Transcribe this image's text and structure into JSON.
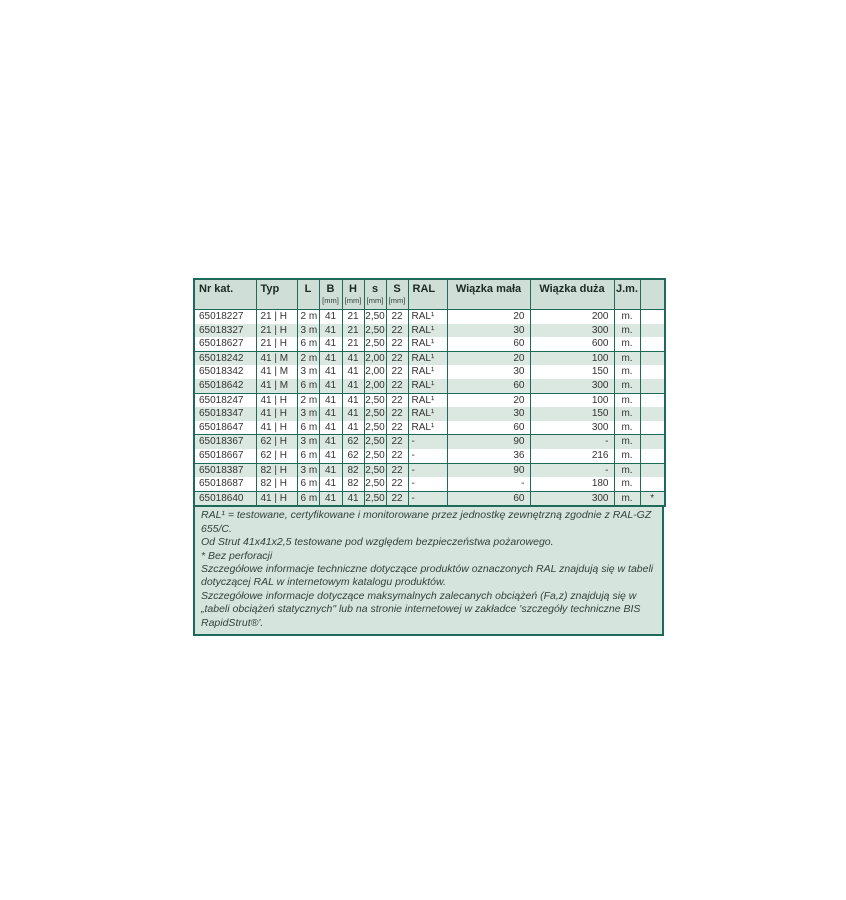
{
  "colors": {
    "border": "#1e6a58",
    "header_bg": "#cfdfd8",
    "stripe_bg": "#dbe8e2",
    "notes_bg": "#d5e5dd",
    "text": "#333333"
  },
  "table": {
    "columns": [
      {
        "key": "nr-kat",
        "label": "Nr kat.",
        "unit": ""
      },
      {
        "key": "typ",
        "label": "Typ",
        "unit": ""
      },
      {
        "key": "l",
        "label": "L",
        "unit": ""
      },
      {
        "key": "b",
        "label": "B",
        "unit": "[mm]"
      },
      {
        "key": "h",
        "label": "H",
        "unit": "[mm]"
      },
      {
        "key": "s-male",
        "label": "s",
        "unit": "[mm]"
      },
      {
        "key": "s-duze",
        "label": "S",
        "unit": "[mm]"
      },
      {
        "key": "ral",
        "label": "RAL",
        "unit": ""
      },
      {
        "key": "wiazka-mala",
        "label": "Wiązka mała",
        "unit": ""
      },
      {
        "key": "wiazka-duza",
        "label": "Wiązka duża",
        "unit": ""
      },
      {
        "key": "jm",
        "label": "J.m.",
        "unit": ""
      },
      {
        "key": "note",
        "label": "",
        "unit": ""
      }
    ],
    "rows": [
      {
        "cells": [
          "65018227",
          "21 | H",
          "2 m",
          "41",
          "21",
          "2,50",
          "22",
          "RAL¹",
          "20",
          "200",
          "m.",
          ""
        ],
        "group_end": false
      },
      {
        "cells": [
          "65018327",
          "21 | H",
          "3 m",
          "41",
          "21",
          "2,50",
          "22",
          "RAL¹",
          "30",
          "300",
          "m.",
          ""
        ],
        "group_end": false
      },
      {
        "cells": [
          "65018627",
          "21 | H",
          "6 m",
          "41",
          "21",
          "2,50",
          "22",
          "RAL¹",
          "60",
          "600",
          "m.",
          ""
        ],
        "group_end": true
      },
      {
        "cells": [
          "65018242",
          "41 | M",
          "2 m",
          "41",
          "41",
          "2,00",
          "22",
          "RAL¹",
          "20",
          "100",
          "m.",
          ""
        ],
        "group_end": false
      },
      {
        "cells": [
          "65018342",
          "41 | M",
          "3 m",
          "41",
          "41",
          "2,00",
          "22",
          "RAL¹",
          "30",
          "150",
          "m.",
          ""
        ],
        "group_end": false
      },
      {
        "cells": [
          "65018642",
          "41 | M",
          "6 m",
          "41",
          "41",
          "2,00",
          "22",
          "RAL¹",
          "60",
          "300",
          "m.",
          ""
        ],
        "group_end": true
      },
      {
        "cells": [
          "65018247",
          "41 | H",
          "2 m",
          "41",
          "41",
          "2,50",
          "22",
          "RAL¹",
          "20",
          "100",
          "m.",
          ""
        ],
        "group_end": false
      },
      {
        "cells": [
          "65018347",
          "41 | H",
          "3 m",
          "41",
          "41",
          "2,50",
          "22",
          "RAL¹",
          "30",
          "150",
          "m.",
          ""
        ],
        "group_end": false
      },
      {
        "cells": [
          "65018647",
          "41 | H",
          "6 m",
          "41",
          "41",
          "2,50",
          "22",
          "RAL¹",
          "60",
          "300",
          "m.",
          ""
        ],
        "group_end": true
      },
      {
        "cells": [
          "65018367",
          "62 | H",
          "3 m",
          "41",
          "62",
          "2,50",
          "22",
          "-",
          "90",
          "-",
          "m.",
          ""
        ],
        "group_end": false
      },
      {
        "cells": [
          "65018667",
          "62 | H",
          "6 m",
          "41",
          "62",
          "2,50",
          "22",
          "-",
          "36",
          "216",
          "m.",
          ""
        ],
        "group_end": true
      },
      {
        "cells": [
          "65018387",
          "82 | H",
          "3 m",
          "41",
          "82",
          "2,50",
          "22",
          "-",
          "90",
          "-",
          "m.",
          ""
        ],
        "group_end": false
      },
      {
        "cells": [
          "65018687",
          "82 | H",
          "6 m",
          "41",
          "82",
          "2,50",
          "22",
          "-",
          "-",
          "180",
          "m.",
          ""
        ],
        "group_end": true
      },
      {
        "cells": [
          "65018640",
          "41 | H",
          "6 m",
          "41",
          "41",
          "2,50",
          "22",
          "-",
          "60",
          "300",
          "m.",
          "*"
        ],
        "group_end": false
      }
    ]
  },
  "footnotes": [
    "RAL¹ = testowane, certyfikowane i monitorowane przez jednostkę zewnętrzną zgodnie z RAL-GZ 655/C.",
    "Od Strut 41x41x2,5 testowane pod względem bezpieczeństwa pożarowego.",
    "* Bez perforacji",
    "Szczegółowe informacje techniczne dotyczące produktów oznaczonych RAL znajdują się w tabeli dotyczącej RAL w internetowym katalogu produktów.",
    "Szczegółowe informacje dotyczące maksymalnych zalecanych obciążeń (Fa,z) znajdują się w „tabeli obciążeń statycznych\" lub na stronie internetowej w zakładce 'szczegóły techniczne BIS RapidStrut®'."
  ]
}
